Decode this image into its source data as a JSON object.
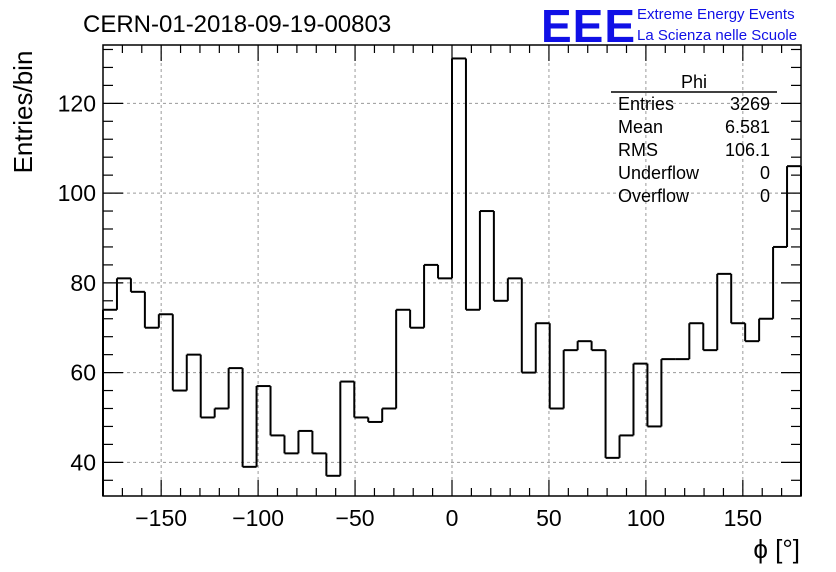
{
  "chart_data": {
    "type": "bar",
    "title": "CERN-01-2018-09-19-00803",
    "xlabel": "ϕ [°]",
    "ylabel": "Entries/bin",
    "xlim": [
      -180,
      180
    ],
    "ylim": [
      32.5,
      133
    ],
    "grid": true,
    "bin_width": 7.2,
    "x_ticks": [
      -150,
      -100,
      -50,
      0,
      50,
      100,
      150
    ],
    "x_tick_labels": [
      "−150",
      "−100",
      "−50",
      "0",
      "50",
      "100",
      "150"
    ],
    "y_ticks": [
      40,
      60,
      80,
      100,
      120
    ],
    "y_tick_labels": [
      "40",
      "60",
      "80",
      "100",
      "120"
    ],
    "values": [
      74,
      81,
      78,
      70,
      73,
      56,
      64,
      50,
      52,
      61,
      39,
      57,
      46,
      42,
      47,
      42,
      37,
      58,
      50,
      49,
      52,
      74,
      70,
      84,
      81,
      130,
      74,
      96,
      76,
      81,
      60,
      71,
      52,
      65,
      67,
      65,
      41,
      46,
      62,
      48,
      63,
      63,
      71,
      65,
      82,
      71,
      67,
      72,
      88,
      106
    ],
    "stats": {
      "name": "Phi",
      "rows": [
        {
          "label": "Entries",
          "value": "3269"
        },
        {
          "label": "Mean",
          "value": "6.581"
        },
        {
          "label": "RMS",
          "value": "106.1"
        },
        {
          "label": "Underflow",
          "value": "0"
        },
        {
          "label": "Overflow",
          "value": "0"
        }
      ]
    }
  },
  "logo": {
    "mark": "EEE",
    "line1": "Extreme Energy Events",
    "line2": "La Scienza nelle Scuole"
  },
  "colors": {
    "line": "#000000",
    "logo": "#1010e6",
    "grid": "#9a9a9a"
  }
}
